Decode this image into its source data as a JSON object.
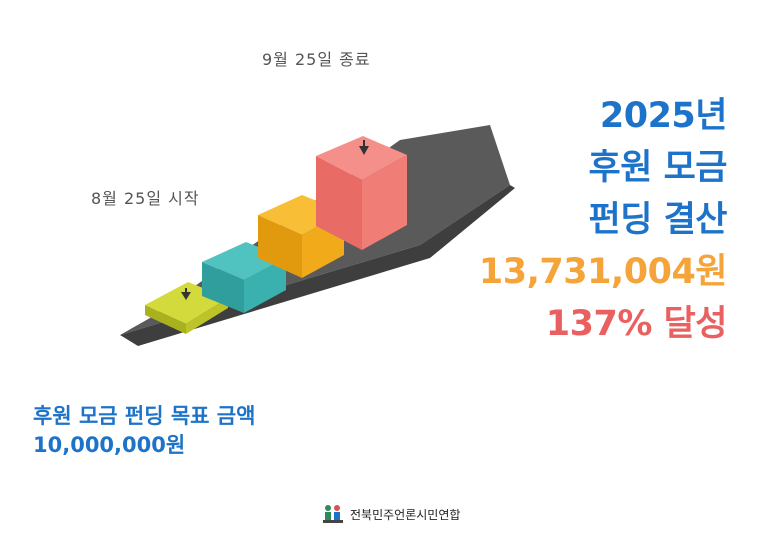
{
  "labels": {
    "end": "9월 25일 종료",
    "start": "8월 25일 시작"
  },
  "result": {
    "line1": "2025년",
    "line2": "후원 모금",
    "line3": "펀딩 결산",
    "amount": "13,731,004원",
    "achievement": "137% 달성"
  },
  "goal": {
    "title": "후원 모금 펀딩 목표 금액",
    "amount": "10,000,000원"
  },
  "footer": {
    "org_name": "전북민주언론시민연합"
  },
  "colors": {
    "blue": "#1c73c9",
    "orange": "#f5a43a",
    "red": "#ea5f5f",
    "step_lime": "#c3cb2b",
    "step_teal": "#3fb3b1",
    "step_amber": "#f5b11b",
    "step_salmon": "#ee7b74",
    "arrow": "#555555"
  },
  "icons": [
    "growth-arrow-icon",
    "pin-icon",
    "logo-icon"
  ]
}
